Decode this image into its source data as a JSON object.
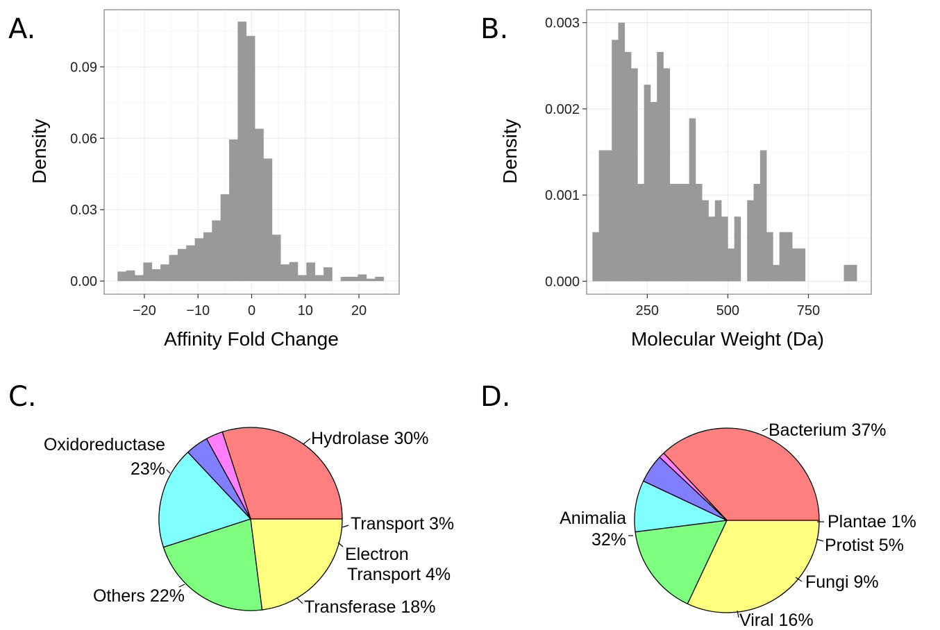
{
  "chart_data": [
    {
      "panel": "A.",
      "type": "bar",
      "xlabel": "Affinity Fold Change",
      "ylabel": "Density",
      "xlim": [
        -27.5,
        27.5
      ],
      "ylim": [
        -0.0055,
        0.114
      ],
      "x_ticks": [
        -20,
        -10,
        0,
        10,
        20
      ],
      "x_tick_labels": [
        "−20",
        "−10",
        "0",
        "10",
        "20"
      ],
      "y_ticks": [
        0.0,
        0.03,
        0.06,
        0.09
      ],
      "y_tick_labels": [
        "0.00",
        "0.03",
        "0.06",
        "0.09"
      ],
      "grid": true,
      "bin_width": 1.6,
      "bin_starts": [
        -25.0,
        -23.4,
        -21.8,
        -20.2,
        -18.6,
        -17.0,
        -15.4,
        -13.8,
        -12.2,
        -10.6,
        -9.0,
        -7.4,
        -5.8,
        -4.2,
        -2.6,
        -1.0,
        0.6,
        2.2,
        3.8,
        5.4,
        7.0,
        8.6,
        10.2,
        11.8,
        13.4,
        15.0,
        16.6,
        18.2,
        19.8,
        21.4,
        23.0
      ],
      "values": [
        0.004,
        0.0045,
        0.0025,
        0.0078,
        0.005,
        0.007,
        0.011,
        0.0135,
        0.015,
        0.018,
        0.0205,
        0.0255,
        0.0365,
        0.0595,
        0.109,
        0.103,
        0.064,
        0.0515,
        0.0195,
        0.007,
        0.008,
        0.0025,
        0.0078,
        0.0025,
        0.0058,
        0.0,
        0.0018,
        0.0018,
        0.0028,
        0.001,
        0.0018
      ]
    },
    {
      "panel": "B.",
      "type": "bar",
      "xlabel": "Molecular Weight (Da)",
      "ylabel": "Density",
      "xlim": [
        62,
        945
      ],
      "ylim": [
        -0.00015,
        0.00315
      ],
      "x_ticks": [
        250,
        500,
        750
      ],
      "x_tick_labels": [
        "250",
        "500",
        "750"
      ],
      "y_ticks": [
        0.0,
        0.001,
        0.002,
        0.003
      ],
      "y_tick_labels": [
        "0.000",
        "0.001",
        "0.002",
        "0.003"
      ],
      "grid": true,
      "bin_width": 20,
      "bin_starts": [
        80,
        100,
        120,
        140,
        160,
        180,
        200,
        220,
        240,
        260,
        280,
        300,
        320,
        340,
        360,
        380,
        400,
        420,
        440,
        460,
        480,
        500,
        520,
        540,
        560,
        580,
        600,
        620,
        640,
        660,
        680,
        700,
        720,
        740,
        760,
        780,
        800,
        820,
        840,
        860,
        880,
        900
      ],
      "values": [
        0.00057,
        0.00152,
        0.00152,
        0.0028,
        0.003,
        0.00266,
        0.00247,
        0.00113,
        0.00228,
        0.00208,
        0.00266,
        0.00247,
        0.00113,
        0.00113,
        0.00113,
        0.00189,
        0.00113,
        0.00094,
        0.00075,
        0.00094,
        0.00075,
        0.00038,
        0.00075,
        0.0,
        0.00094,
        0.00113,
        0.00152,
        0.00057,
        0.00019,
        0.00057,
        0.00057,
        0.00038,
        0.00038,
        0.0,
        0.0,
        0.0,
        0.0,
        0.0,
        0.0,
        0.00019,
        0.00019,
        0.0
      ]
    },
    {
      "panel": "C.",
      "type": "pie",
      "slices": [
        {
          "label": "Hydrolase 30%",
          "value": 30,
          "color": "#ff7f7f"
        },
        {
          "label": "Transport 3%",
          "value": 3,
          "color": "#ff7fff"
        },
        {
          "label": "Electron Transport 4%",
          "value": 4,
          "color": "#7f7fff"
        },
        {
          "label": "Transferase 18%",
          "value": 18,
          "color": "#7fffff"
        },
        {
          "label": "Others 22%",
          "value": 22,
          "color": "#7fff7f"
        },
        {
          "label": "Oxidoreductase 23%",
          "value": 23,
          "color": "#ffff7f"
        }
      ]
    },
    {
      "panel": "D.",
      "type": "pie",
      "slices": [
        {
          "label": "Bacterium 37%",
          "value": 37,
          "color": "#ff7f7f"
        },
        {
          "label": "Plantae 1%",
          "value": 1,
          "color": "#ff7fff"
        },
        {
          "label": "Protist 5%",
          "value": 5,
          "color": "#7f7fff"
        },
        {
          "label": "Fungi 9%",
          "value": 9,
          "color": "#7fffff"
        },
        {
          "label": "Viral 16%",
          "value": 16,
          "color": "#7fff7f"
        },
        {
          "label": "Animalia 32%",
          "value": 32,
          "color": "#ffff7f"
        }
      ]
    }
  ],
  "pie_labels": {
    "c": {
      "hydrolase": "Hydrolase 30%",
      "oxido_1": "Oxidoreductase",
      "oxido_2": "23%",
      "transport": "Transport 3%",
      "electron_1": "Electron",
      "electron_2": "Transport 4%",
      "transferase": "Transferase 18%",
      "others": "Others 22%"
    },
    "d": {
      "bacterium": "Bacterium 37%",
      "animalia_1": "Animalia",
      "animalia_2": "32%",
      "plantae": "Plantae 1%",
      "protist": "Protist 5%",
      "fungi": "Fungi 9%",
      "viral": "Viral 16%"
    }
  },
  "styles": {
    "bar_fill": "#999999",
    "grid_color": "#ebebeb",
    "panel_border": "#808080"
  }
}
